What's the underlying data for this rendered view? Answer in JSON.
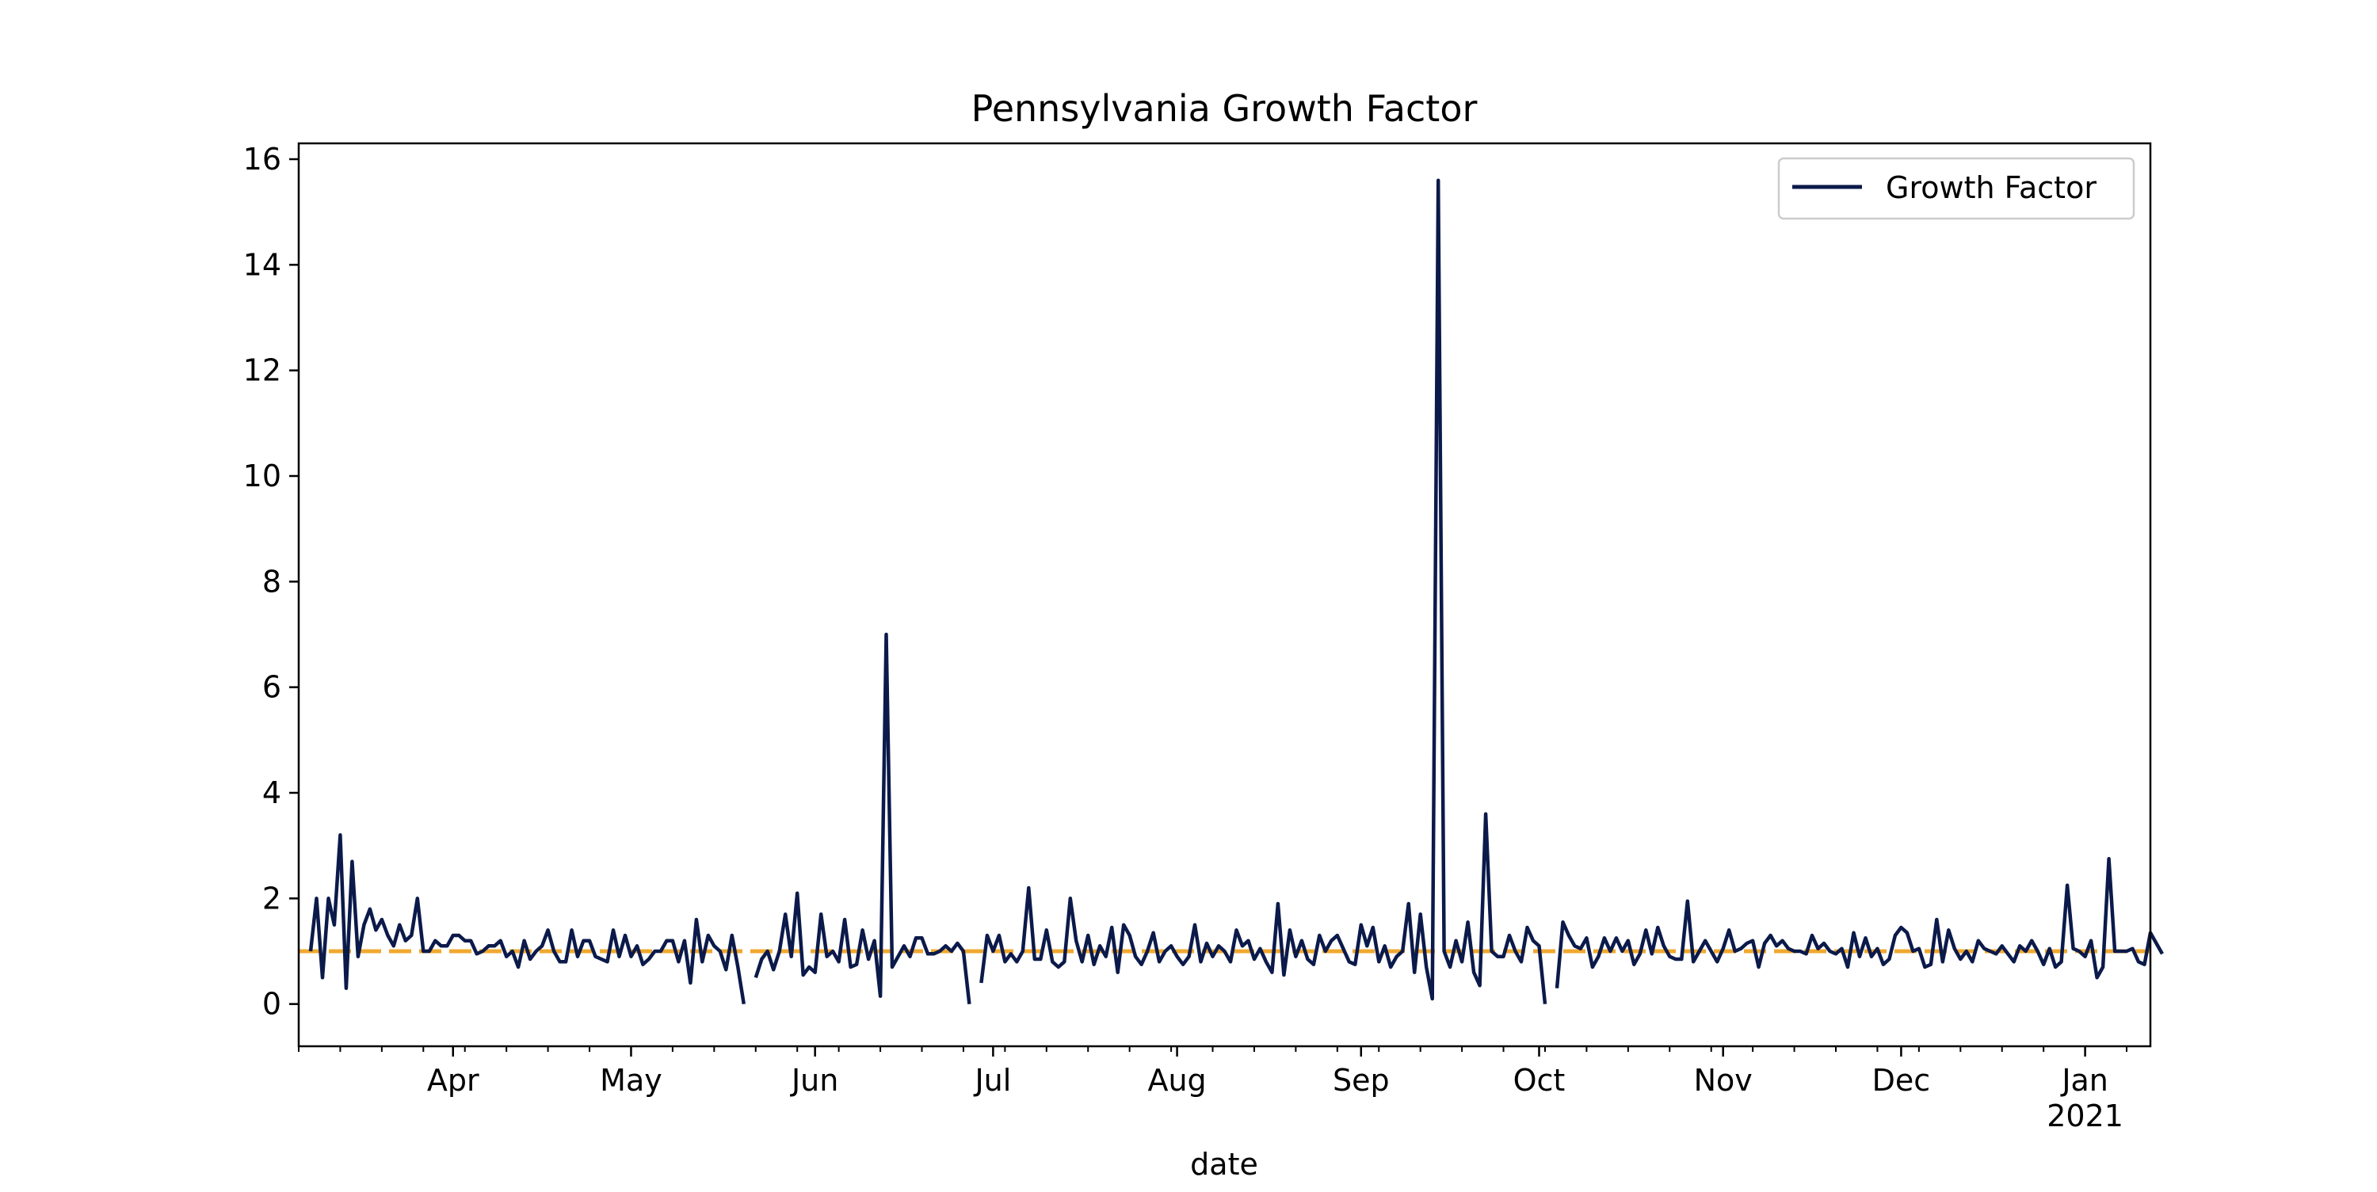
{
  "chart_data": {
    "type": "line",
    "title": "Pennsylvania Growth Factor",
    "xlabel": "date",
    "ylabel": "",
    "x_start": "2020-03-06",
    "x_end": "2021-01-12",
    "xlim_days": [
      0,
      312
    ],
    "ylim": [
      -0.8,
      16.3
    ],
    "y_ticks": [
      0,
      2,
      4,
      6,
      8,
      10,
      12,
      14,
      16
    ],
    "x_ticks": [
      {
        "day": 26,
        "label": "Apr",
        "sub": ""
      },
      {
        "day": 56,
        "label": "May",
        "sub": ""
      },
      {
        "day": 87,
        "label": "Jun",
        "sub": ""
      },
      {
        "day": 117,
        "label": "Jul",
        "sub": ""
      },
      {
        "day": 148,
        "label": "Aug",
        "sub": ""
      },
      {
        "day": 179,
        "label": "Sep",
        "sub": ""
      },
      {
        "day": 209,
        "label": "Oct",
        "sub": ""
      },
      {
        "day": 240,
        "label": "Nov",
        "sub": ""
      },
      {
        "day": 270,
        "label": "Dec",
        "sub": ""
      },
      {
        "day": 301,
        "label": "Jan",
        "sub": "2021"
      }
    ],
    "minor_tick_step_days": 7,
    "reference_line": {
      "y": 1.0,
      "color": "#f0a830",
      "style": "dashed"
    },
    "legend": {
      "position": "top-right",
      "entries": [
        "Growth Factor"
      ]
    },
    "series": [
      {
        "name": "Growth Factor",
        "color": "#0b1a4a",
        "x_start_day": 2,
        "values": [
          1.0,
          2.0,
          0.5,
          2.0,
          1.5,
          3.2,
          0.3,
          2.7,
          0.9,
          1.5,
          1.8,
          1.4,
          1.6,
          1.3,
          1.1,
          1.5,
          1.2,
          1.3,
          2.0,
          1.0,
          1.0,
          1.2,
          1.1,
          1.1,
          1.3,
          1.3,
          1.2,
          1.2,
          0.95,
          1.0,
          1.1,
          1.1,
          1.2,
          0.9,
          1.0,
          0.7,
          1.2,
          0.85,
          1.0,
          1.1,
          1.4,
          1.0,
          0.8,
          0.8,
          1.4,
          0.9,
          1.2,
          1.2,
          0.9,
          0.85,
          0.8,
          1.4,
          0.9,
          1.3,
          0.9,
          1.1,
          0.75,
          0.85,
          1.0,
          1.0,
          1.2,
          1.2,
          0.8,
          1.2,
          0.4,
          1.6,
          0.8,
          1.3,
          1.1,
          1.0,
          0.65,
          1.3,
          0.7,
          0.0,
          null,
          0.5,
          0.85,
          1.0,
          0.65,
          1.0,
          1.7,
          0.9,
          2.1,
          0.55,
          0.7,
          0.6,
          1.7,
          0.9,
          1.0,
          0.8,
          1.6,
          0.7,
          0.75,
          1.4,
          0.85,
          1.2,
          0.15,
          7.0,
          0.7,
          0.9,
          1.1,
          0.9,
          1.25,
          1.25,
          0.95,
          0.95,
          1.0,
          1.1,
          1.0,
          1.15,
          1.0,
          0.0,
          null,
          0.4,
          1.3,
          1.0,
          1.3,
          0.8,
          0.95,
          0.8,
          1.0,
          2.2,
          0.85,
          0.85,
          1.4,
          0.8,
          0.7,
          0.8,
          2.0,
          1.2,
          0.8,
          1.3,
          0.75,
          1.1,
          0.9,
          1.45,
          0.6,
          1.5,
          1.3,
          0.9,
          0.75,
          1.0,
          1.35,
          0.8,
          1.0,
          1.1,
          0.9,
          0.75,
          0.9,
          1.5,
          0.8,
          1.15,
          0.9,
          1.1,
          1.0,
          0.8,
          1.4,
          1.1,
          1.2,
          0.85,
          1.05,
          0.8,
          0.6,
          1.9,
          0.55,
          1.4,
          0.9,
          1.2,
          0.85,
          0.75,
          1.3,
          1.0,
          1.2,
          1.3,
          1.05,
          0.8,
          0.75,
          1.5,
          1.1,
          1.45,
          0.8,
          1.1,
          0.7,
          0.9,
          1.0,
          1.9,
          0.6,
          1.7,
          0.7,
          0.1,
          15.6,
          1.0,
          0.7,
          1.2,
          0.8,
          1.55,
          0.6,
          0.35,
          3.6,
          1.0,
          0.9,
          0.9,
          1.3,
          1.0,
          0.8,
          1.45,
          1.2,
          1.1,
          0.0,
          null,
          0.3,
          1.55,
          1.3,
          1.1,
          1.05,
          1.25,
          0.7,
          0.9,
          1.25,
          1.0,
          1.25,
          1.0,
          1.2,
          0.75,
          0.95,
          1.4,
          0.95,
          1.45,
          1.1,
          0.9,
          0.85,
          0.85,
          1.95,
          0.8,
          1.0,
          1.2,
          1.0,
          0.8,
          1.05,
          1.4,
          1.0,
          1.05,
          1.15,
          1.2,
          0.7,
          1.15,
          1.3,
          1.1,
          1.2,
          1.05,
          1.0,
          1.0,
          0.95,
          1.3,
          1.05,
          1.15,
          1.0,
          0.95,
          1.05,
          0.7,
          1.35,
          0.9,
          1.25,
          0.9,
          1.05,
          0.75,
          0.85,
          1.3,
          1.45,
          1.35,
          1.0,
          1.05,
          0.7,
          0.75,
          1.6,
          0.8,
          1.4,
          1.05,
          0.85,
          1.0,
          0.8,
          1.2,
          1.05,
          1.0,
          0.95,
          1.1,
          0.95,
          0.8,
          1.1,
          1.0,
          1.2,
          1.0,
          0.75,
          1.05,
          0.7,
          0.8,
          2.25,
          1.05,
          1.0,
          0.9,
          1.2,
          0.5,
          0.7,
          2.75,
          1.0,
          1.0,
          1.0,
          1.05,
          0.8,
          0.75,
          1.35,
          1.15,
          0.95
        ]
      }
    ]
  }
}
